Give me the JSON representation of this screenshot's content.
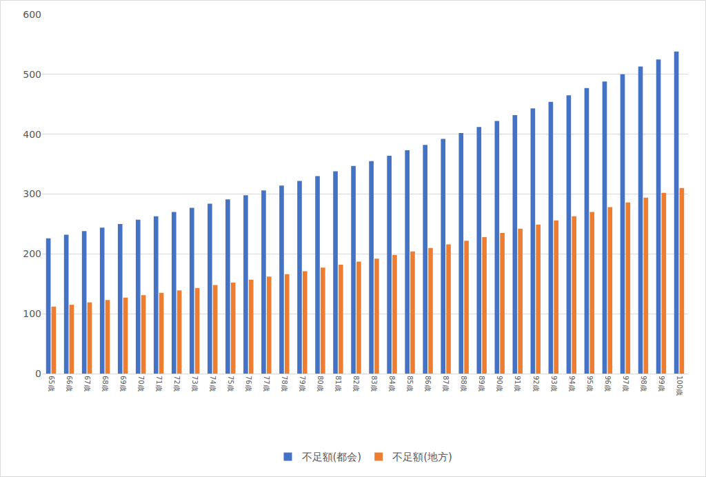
{
  "chart_data": {
    "type": "bar",
    "categories": [
      "65歳",
      "66歳",
      "67歳",
      "68歳",
      "69歳",
      "70歳",
      "71歳",
      "72歳",
      "73歳",
      "74歳",
      "75歳",
      "76歳",
      "77歳",
      "78歳",
      "79歳",
      "80歳",
      "81歳",
      "82歳",
      "83歳",
      "84歳",
      "85歳",
      "86歳",
      "87歳",
      "88歳",
      "89歳",
      "90歳",
      "91歳",
      "92歳",
      "93歳",
      "94歳",
      "95歳",
      "96歳",
      "97歳",
      "98歳",
      "99歳",
      "100歳"
    ],
    "series": [
      {
        "name": "不足額(都会)",
        "color": "#4472c4",
        "values": [
          226,
          232,
          238,
          244,
          250,
          257,
          263,
          270,
          277,
          284,
          291,
          298,
          306,
          314,
          322,
          330,
          338,
          347,
          355,
          364,
          373,
          382,
          392,
          402,
          412,
          422,
          432,
          443,
          454,
          465,
          477,
          488,
          500,
          513,
          525,
          538
        ]
      },
      {
        "name": "不足額(地方)",
        "color": "#ed7d31",
        "values": [
          112,
          115,
          119,
          123,
          127,
          131,
          135,
          139,
          143,
          148,
          152,
          157,
          162,
          166,
          171,
          177,
          182,
          187,
          192,
          198,
          204,
          210,
          216,
          222,
          228,
          235,
          242,
          249,
          256,
          263,
          270,
          278,
          286,
          294,
          302,
          310
        ]
      }
    ],
    "ylim": [
      0,
      600
    ],
    "yticks": [
      0,
      100,
      200,
      300,
      400,
      500,
      600
    ],
    "grid": true,
    "legend": "bottom"
  }
}
